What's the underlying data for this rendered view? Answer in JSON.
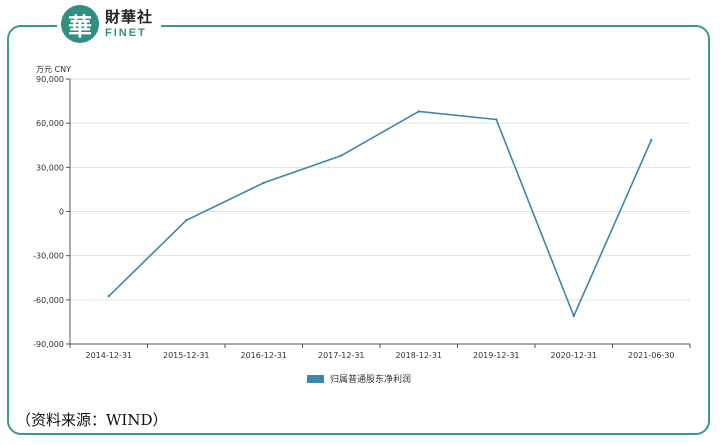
{
  "brand": {
    "logo_char": "華",
    "name_cn": "財華社",
    "name_en": "FINET",
    "color": "#2f8f81"
  },
  "source_note": "（资料来源：WIND）",
  "chart_data": {
    "type": "line",
    "unit_label": "万元  CNY",
    "categories": [
      "2014-12-31",
      "2015-12-31",
      "2016-12-31",
      "2017-12-31",
      "2018-12-31",
      "2019-12-31",
      "2020-12-31",
      "2021-06-30"
    ],
    "series": [
      {
        "name": "归属普通股东净利润",
        "color": "#3d86a8",
        "values": [
          -57500,
          -6000,
          19500,
          38000,
          68000,
          62500,
          -71000,
          48500
        ]
      }
    ],
    "y_ticks": [
      "90,000",
      "60,000",
      "30,000",
      "0",
      "-30,000",
      "-60,000",
      "-90,000"
    ],
    "ylim": [
      -90000,
      90000
    ],
    "grid": true,
    "legend_position": "bottom-center"
  }
}
